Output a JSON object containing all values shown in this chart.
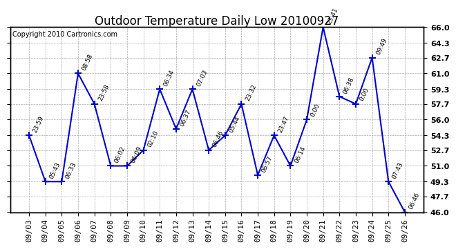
{
  "title": "Outdoor Temperature Daily Low 20100927",
  "copyright": "Copyright 2010 Cartronics.com",
  "x_labels": [
    "09/03",
    "09/04",
    "09/05",
    "09/06",
    "09/07",
    "09/08",
    "09/09",
    "09/10",
    "09/11",
    "09/12",
    "09/13",
    "09/14",
    "09/15",
    "09/16",
    "09/17",
    "09/18",
    "09/19",
    "09/20",
    "09/21",
    "09/22",
    "09/23",
    "09/24",
    "09/25",
    "09/26"
  ],
  "y_values": [
    54.3,
    49.3,
    49.3,
    61.0,
    57.7,
    51.0,
    51.0,
    52.7,
    59.3,
    55.0,
    59.3,
    52.7,
    54.3,
    57.7,
    50.0,
    54.3,
    51.0,
    56.0,
    66.0,
    58.5,
    57.7,
    62.7,
    49.3,
    46.0
  ],
  "time_labels": [
    "23:59",
    "05:43",
    "06:33",
    "08:58",
    "23:58",
    "06:02",
    "06:09",
    "02:10",
    "06:34",
    "06:37",
    "07:03",
    "06:46",
    "05:44",
    "23:32",
    "06:57",
    "23:47",
    "06:14",
    "0:00",
    "23:41",
    "06:38",
    "0:00",
    "09:49",
    "07:43",
    "06:46"
  ],
  "ylim_min": 46.0,
  "ylim_max": 66.0,
  "yticks": [
    46.0,
    47.7,
    49.3,
    51.0,
    52.7,
    54.3,
    56.0,
    57.7,
    59.3,
    61.0,
    62.7,
    64.3,
    66.0
  ],
  "line_color": "#0000cc",
  "marker": "+",
  "marker_size": 7,
  "background_color": "#ffffff",
  "plot_bg_color": "#ffffff",
  "grid_color": "#aaaaaa",
  "title_fontsize": 12,
  "tick_fontsize": 8,
  "annot_fontsize": 6.5,
  "copyright_fontsize": 7
}
